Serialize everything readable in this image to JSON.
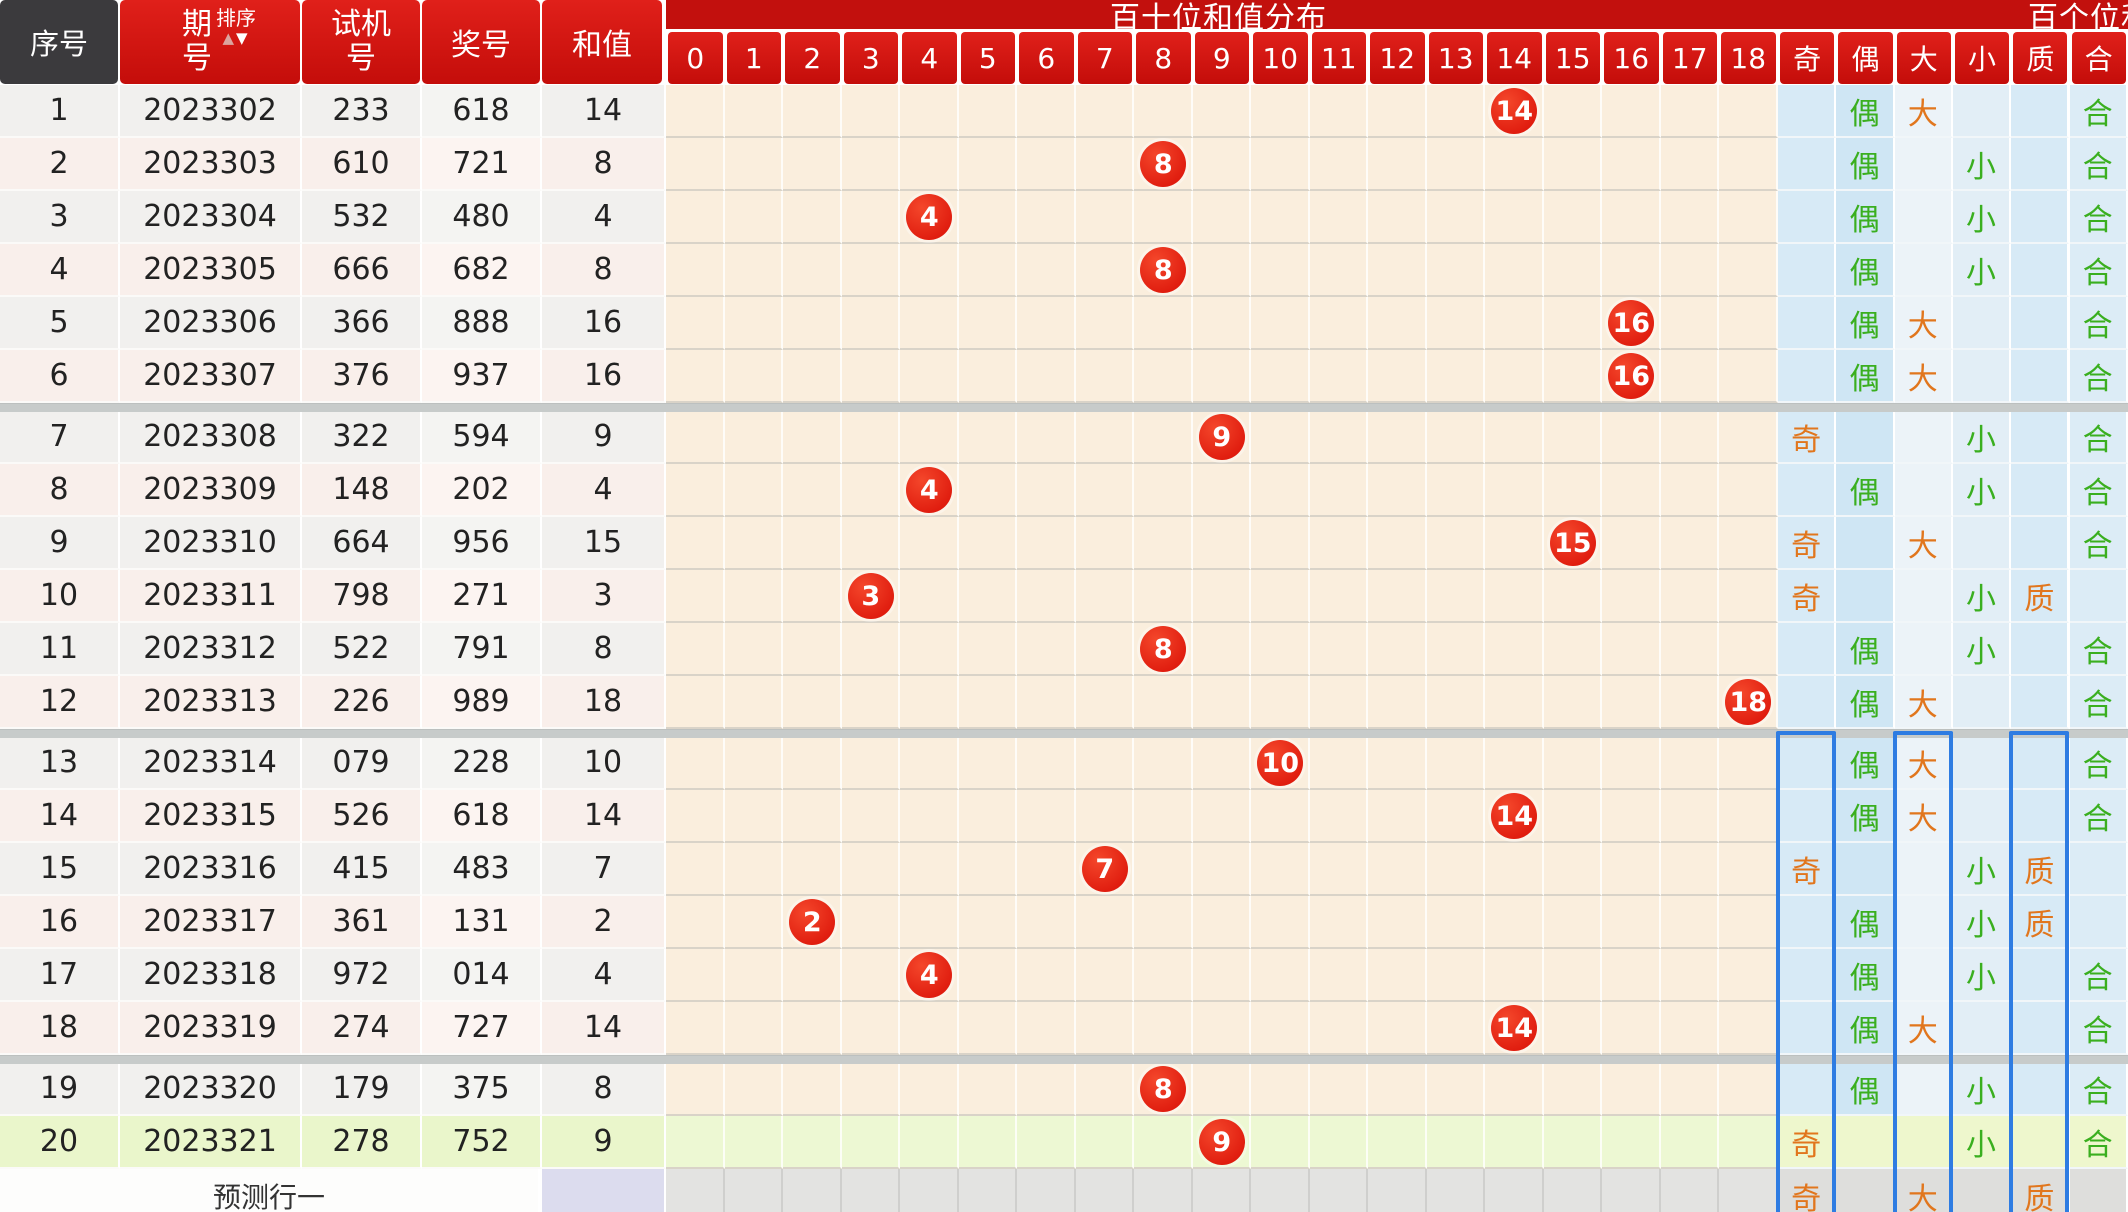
{
  "header": {
    "seq": "序号",
    "period": "期号",
    "sort_label": "排序",
    "sort_up_icon": "▲",
    "sort_down_icon": "▼",
    "test_line1": "试机",
    "test_line2": "号",
    "period_line1": "期",
    "period_line2": "号",
    "prize": "奖号",
    "sum": "和值",
    "group_left_title": "百十位和值分布",
    "group_right_title": "百个位和值分布",
    "sum_cols": [
      "0",
      "1",
      "2",
      "3",
      "4",
      "5",
      "6",
      "7",
      "8",
      "9",
      "10",
      "11",
      "12",
      "13",
      "14",
      "15",
      "16",
      "17",
      "18"
    ],
    "attr_cols": [
      "奇",
      "偶",
      "大",
      "小",
      "质",
      "合"
    ]
  },
  "rows": [
    {
      "seq": "1",
      "period": "2023302",
      "test": "233",
      "prize": "618",
      "sum": "14",
      "odd_even": "偶",
      "big_small": "大",
      "prime_comp": "合"
    },
    {
      "seq": "2",
      "period": "2023303",
      "test": "610",
      "prize": "721",
      "sum": "8",
      "odd_even": "偶",
      "big_small": "小",
      "prime_comp": "合"
    },
    {
      "seq": "3",
      "period": "2023304",
      "test": "532",
      "prize": "480",
      "sum": "4",
      "odd_even": "偶",
      "big_small": "小",
      "prime_comp": "合"
    },
    {
      "seq": "4",
      "period": "2023305",
      "test": "666",
      "prize": "682",
      "sum": "8",
      "odd_even": "偶",
      "big_small": "小",
      "prime_comp": "合"
    },
    {
      "seq": "5",
      "period": "2023306",
      "test": "366",
      "prize": "888",
      "sum": "16",
      "odd_even": "偶",
      "big_small": "大",
      "prime_comp": "合"
    },
    {
      "seq": "6",
      "period": "2023307",
      "test": "376",
      "prize": "937",
      "sum": "16",
      "odd_even": "偶",
      "big_small": "大",
      "prime_comp": "合"
    },
    {
      "seq": "7",
      "period": "2023308",
      "test": "322",
      "prize": "594",
      "sum": "9",
      "odd_even": "奇",
      "big_small": "小",
      "prime_comp": "合"
    },
    {
      "seq": "8",
      "period": "2023309",
      "test": "148",
      "prize": "202",
      "sum": "4",
      "odd_even": "偶",
      "big_small": "小",
      "prime_comp": "合"
    },
    {
      "seq": "9",
      "period": "2023310",
      "test": "664",
      "prize": "956",
      "sum": "15",
      "odd_even": "奇",
      "big_small": "大",
      "prime_comp": "合"
    },
    {
      "seq": "10",
      "period": "2023311",
      "test": "798",
      "prize": "271",
      "sum": "3",
      "odd_even": "奇",
      "big_small": "小",
      "prime_comp": "质"
    },
    {
      "seq": "11",
      "period": "2023312",
      "test": "522",
      "prize": "791",
      "sum": "8",
      "odd_even": "偶",
      "big_small": "小",
      "prime_comp": "合"
    },
    {
      "seq": "12",
      "period": "2023313",
      "test": "226",
      "prize": "989",
      "sum": "18",
      "odd_even": "偶",
      "big_small": "大",
      "prime_comp": "合"
    },
    {
      "seq": "13",
      "period": "2023314",
      "test": "079",
      "prize": "228",
      "sum": "10",
      "odd_even": "偶",
      "big_small": "大",
      "prime_comp": "合"
    },
    {
      "seq": "14",
      "period": "2023315",
      "test": "526",
      "prize": "618",
      "sum": "14",
      "odd_even": "偶",
      "big_small": "大",
      "prime_comp": "合"
    },
    {
      "seq": "15",
      "period": "2023316",
      "test": "415",
      "prize": "483",
      "sum": "7",
      "odd_even": "奇",
      "big_small": "小",
      "prime_comp": "质"
    },
    {
      "seq": "16",
      "period": "2023317",
      "test": "361",
      "prize": "131",
      "sum": "2",
      "odd_even": "偶",
      "big_small": "小",
      "prime_comp": "质"
    },
    {
      "seq": "17",
      "period": "2023318",
      "test": "972",
      "prize": "014",
      "sum": "4",
      "odd_even": "偶",
      "big_small": "小",
      "prime_comp": "合"
    },
    {
      "seq": "18",
      "period": "2023319",
      "test": "274",
      "prize": "727",
      "sum": "14",
      "odd_even": "偶",
      "big_small": "大",
      "prime_comp": "合"
    },
    {
      "seq": "19",
      "period": "2023320",
      "test": "179",
      "prize": "375",
      "sum": "8",
      "odd_even": "偶",
      "big_small": "小",
      "prime_comp": "合"
    },
    {
      "seq": "20",
      "period": "2023321",
      "test": "278",
      "prize": "752",
      "sum": "9",
      "odd_even": "奇",
      "big_small": "小",
      "prime_comp": "合",
      "highlight": "green"
    }
  ],
  "prediction": {
    "label": "预测行一",
    "odd_even": "奇",
    "big_small": "大",
    "prime_comp": "质"
  },
  "highlight_boxes": {
    "columns": [
      "奇",
      "大",
      "质"
    ],
    "from_row": 13
  },
  "colors": {
    "header_red": "#d21511",
    "header_dark": "#3b3a3d",
    "marker_red": "#dd1708",
    "grid_cream": "#faeedd",
    "row_gray": "#f1f0ee",
    "row_pink": "#f9efeb",
    "green_row": "#eaf6cb",
    "pred_gray": "#dededc",
    "pred_sum_lavender": "#dcdcee",
    "attr_blue": "#d7eaf6",
    "attr_light": "#ecf3f8",
    "blue_box": "#2e7ce2",
    "orange_text": "#e1761d",
    "green_text": "#3aaf1f"
  }
}
